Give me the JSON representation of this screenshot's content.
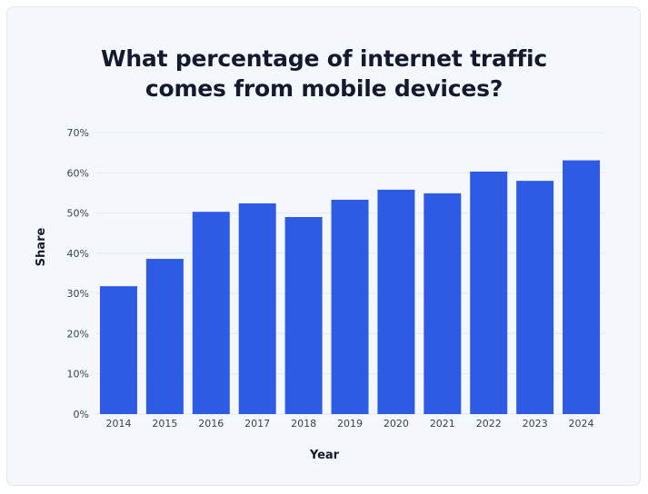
{
  "chart_data": {
    "type": "bar",
    "title_lines": [
      "What percentage of internet traffic",
      "comes from mobile devices?"
    ],
    "xlabel": "Year",
    "ylabel": "Share",
    "categories": [
      "2014",
      "2015",
      "2016",
      "2017",
      "2018",
      "2019",
      "2020",
      "2021",
      "2022",
      "2023",
      "2024"
    ],
    "values": [
      31.8,
      38.6,
      50.3,
      52.4,
      49.0,
      53.3,
      55.8,
      54.9,
      60.3,
      58.0,
      63.1
    ],
    "ylim": [
      0,
      70
    ],
    "yticks": [
      "0%",
      "10%",
      "20%",
      "30%",
      "40%",
      "50%",
      "60%",
      "70%"
    ],
    "ytick_values": [
      0,
      10,
      20,
      30,
      40,
      50,
      60,
      70
    ],
    "grid": true,
    "legend": "none",
    "colors": {
      "bar": "#2d5be3",
      "grid": "#e3e9f2",
      "background": "#f4f8fd"
    }
  }
}
